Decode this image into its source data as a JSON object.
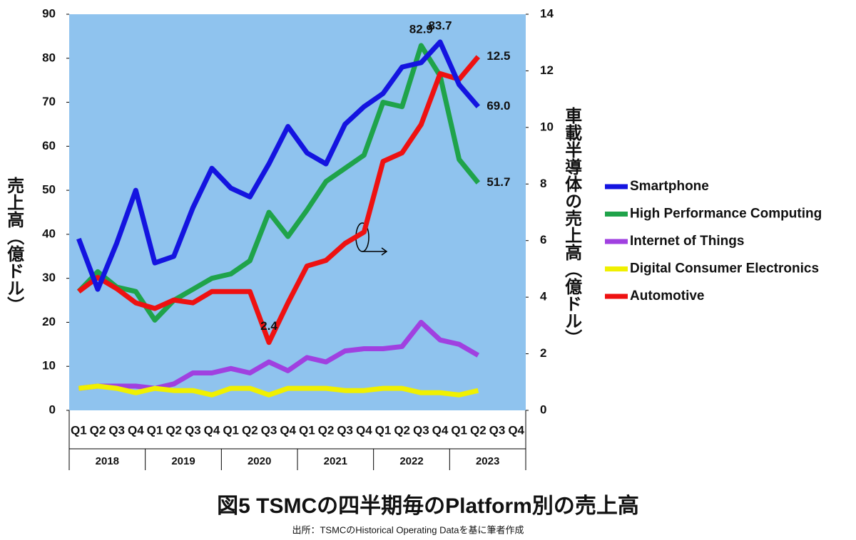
{
  "chart_data": {
    "type": "line",
    "title": "図5 TSMCの四半期毎のPlatform別の売上高",
    "subtitle": "出所：TSMCのHistorical Operating Dataを基に筆者作成",
    "y_label": "売上高（億ドル）",
    "y2_label": "車載半導体の売上高（億ドル）",
    "categories": [
      "Q1",
      "Q2",
      "Q3",
      "Q4",
      "Q1",
      "Q2",
      "Q3",
      "Q4",
      "Q1",
      "Q2",
      "Q3",
      "Q4",
      "Q1",
      "Q2",
      "Q3",
      "Q4",
      "Q1",
      "Q2",
      "Q3",
      "Q4",
      "Q1",
      "Q2",
      "Q3",
      "Q4"
    ],
    "years": [
      "2018",
      "2019",
      "2020",
      "2021",
      "2022",
      "2023"
    ],
    "ylim": [
      0,
      90
    ],
    "yticks": [
      0,
      10,
      20,
      30,
      40,
      50,
      60,
      70,
      80,
      90
    ],
    "y2lim": [
      0,
      14
    ],
    "y2ticks": [
      0,
      2,
      4,
      6,
      8,
      10,
      12,
      14
    ],
    "legend": "right",
    "background": "#8fc3ee",
    "series": [
      {
        "name": "Smartphone",
        "color": "#1414e0",
        "values": [
          39,
          27.5,
          38,
          50,
          33.5,
          35,
          46,
          55,
          50.5,
          48.5,
          56,
          64.5,
          58.5,
          56,
          65,
          69,
          72,
          78,
          79,
          83.7,
          74,
          69,
          null,
          null
        ],
        "value_labels": [
          null,
          null,
          null,
          null,
          null,
          null,
          null,
          null,
          null,
          null,
          null,
          null,
          null,
          null,
          null,
          null,
          null,
          null,
          null,
          "83.7",
          null,
          "69.0",
          null,
          null
        ]
      },
      {
        "name": "High Performance Computing",
        "color": "#1fa34a",
        "values": [
          27,
          31.5,
          28,
          27,
          20.5,
          25,
          27.5,
          30,
          31,
          34,
          45,
          39.5,
          45.5,
          52,
          55,
          58,
          70,
          69,
          82.9,
          76,
          57,
          51.7,
          null,
          null
        ],
        "value_labels": [
          null,
          null,
          null,
          null,
          null,
          null,
          null,
          null,
          null,
          null,
          null,
          null,
          null,
          null,
          null,
          null,
          null,
          null,
          "82.9",
          null,
          null,
          "51.7",
          null,
          null
        ]
      },
      {
        "name": "Internet of Things",
        "color": "#a040e0",
        "values": [
          5,
          5.5,
          5.5,
          5.5,
          5,
          6,
          8.5,
          8.5,
          9.5,
          8.5,
          11,
          9,
          12,
          11,
          13.5,
          14,
          14,
          14.5,
          20,
          16,
          15,
          12.5,
          null,
          null
        ]
      },
      {
        "name": "Digital Consumer Electronics",
        "color": "#f0f000",
        "values": [
          5,
          5.5,
          5,
          4,
          5,
          4.5,
          4.5,
          3.5,
          5,
          5,
          3.5,
          5,
          5,
          5,
          4.5,
          4.5,
          5,
          5,
          4,
          4,
          3.5,
          4.5,
          null,
          null
        ]
      },
      {
        "name": "Automotive",
        "color": "#ee1111",
        "axis": "y2",
        "values": [
          4.2,
          4.7,
          4.3,
          3.8,
          3.6,
          3.9,
          3.8,
          4.2,
          4.2,
          4.2,
          2.4,
          3.8,
          5.1,
          5.3,
          5.9,
          6.3,
          8.8,
          9.1,
          10.1,
          11.9,
          11.7,
          12.5,
          null,
          null
        ],
        "value_labels": [
          null,
          null,
          null,
          null,
          null,
          null,
          null,
          null,
          null,
          null,
          "2.4",
          null,
          null,
          null,
          null,
          null,
          null,
          null,
          null,
          null,
          null,
          "12.5",
          null,
          null
        ]
      }
    ]
  }
}
